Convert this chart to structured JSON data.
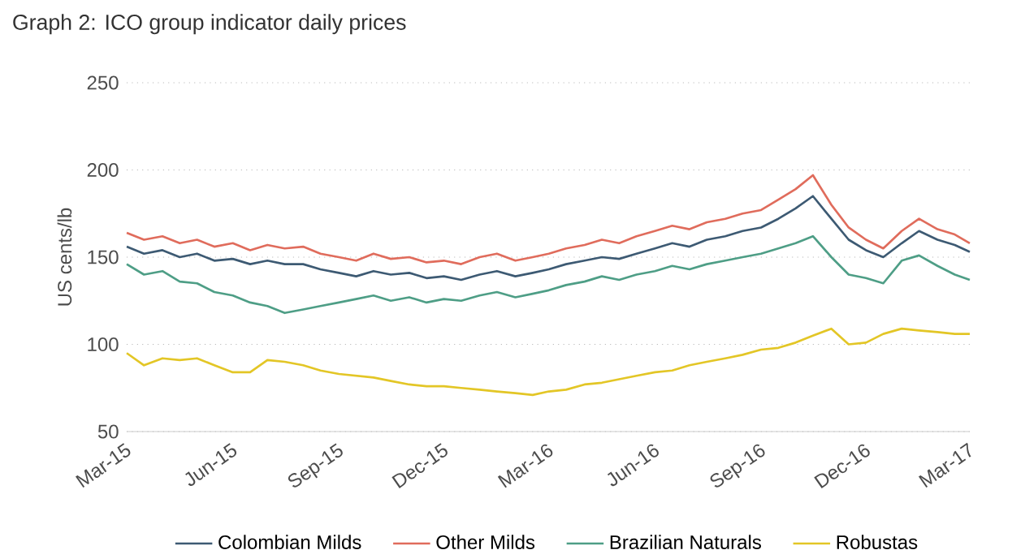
{
  "chart_data": {
    "type": "line",
    "title": "Graph 2: ICO group indicator daily prices",
    "ylabel": "US cents/lb",
    "x": [
      "2015-03-01",
      "2015-03-16",
      "2015-04-01",
      "2015-04-16",
      "2015-05-01",
      "2015-05-16",
      "2015-06-01",
      "2015-06-16",
      "2015-07-01",
      "2015-07-16",
      "2015-08-01",
      "2015-08-16",
      "2015-09-01",
      "2015-09-16",
      "2015-10-01",
      "2015-10-16",
      "2015-11-01",
      "2015-11-16",
      "2015-12-01",
      "2015-12-16",
      "2016-01-01",
      "2016-01-16",
      "2016-02-01",
      "2016-02-16",
      "2016-03-01",
      "2016-03-16",
      "2016-04-01",
      "2016-04-16",
      "2016-05-01",
      "2016-05-16",
      "2016-06-01",
      "2016-06-16",
      "2016-07-01",
      "2016-07-16",
      "2016-08-01",
      "2016-08-16",
      "2016-09-01",
      "2016-09-16",
      "2016-10-01",
      "2016-10-16",
      "2016-11-01",
      "2016-11-16",
      "2016-12-01",
      "2016-12-16",
      "2017-01-01",
      "2017-01-16",
      "2017-02-01",
      "2017-02-16",
      "2017-03-01"
    ],
    "series": [
      {
        "name": "Colombian Milds",
        "color": "#3d5a73",
        "values": [
          156,
          152,
          154,
          150,
          152,
          148,
          149,
          146,
          148,
          146,
          146,
          143,
          141,
          139,
          142,
          140,
          141,
          138,
          139,
          137,
          140,
          142,
          139,
          141,
          143,
          146,
          148,
          150,
          149,
          152,
          155,
          158,
          156,
          160,
          162,
          165,
          167,
          172,
          178,
          185,
          172,
          160,
          154,
          150,
          158,
          165,
          160,
          157,
          153
        ]
      },
      {
        "name": "Other Milds",
        "color": "#e06c5c",
        "values": [
          164,
          160,
          162,
          158,
          160,
          156,
          158,
          154,
          157,
          155,
          156,
          152,
          150,
          148,
          152,
          149,
          150,
          147,
          148,
          146,
          150,
          152,
          148,
          150,
          152,
          155,
          157,
          160,
          158,
          162,
          165,
          168,
          166,
          170,
          172,
          175,
          177,
          183,
          189,
          197,
          180,
          167,
          160,
          155,
          165,
          172,
          166,
          163,
          158
        ]
      },
      {
        "name": "Brazilian Naturals",
        "color": "#4e9e86",
        "values": [
          146,
          140,
          142,
          136,
          135,
          130,
          128,
          124,
          122,
          118,
          120,
          122,
          124,
          126,
          128,
          125,
          127,
          124,
          126,
          125,
          128,
          130,
          127,
          129,
          131,
          134,
          136,
          139,
          137,
          140,
          142,
          145,
          143,
          146,
          148,
          150,
          152,
          155,
          158,
          162,
          150,
          140,
          138,
          135,
          148,
          151,
          145,
          140,
          137
        ]
      },
      {
        "name": "Robustas",
        "color": "#e3c626",
        "values": [
          95,
          88,
          92,
          91,
          92,
          88,
          84,
          84,
          91,
          90,
          88,
          85,
          83,
          82,
          81,
          79,
          77,
          76,
          76,
          75,
          74,
          73,
          72,
          71,
          73,
          74,
          77,
          78,
          80,
          82,
          84,
          85,
          88,
          90,
          92,
          94,
          97,
          98,
          101,
          105,
          109,
          100,
          101,
          106,
          109,
          108,
          107,
          106,
          106
        ]
      }
    ],
    "xlim": [
      "2015-03-01",
      "2017-03-01"
    ],
    "xticks": [
      {
        "value": "2015-03-01",
        "label": "Mar-15"
      },
      {
        "value": "2015-06-01",
        "label": "Jun-15"
      },
      {
        "value": "2015-09-01",
        "label": "Sep-15"
      },
      {
        "value": "2015-12-01",
        "label": "Dec-15"
      },
      {
        "value": "2016-03-01",
        "label": "Mar-16"
      },
      {
        "value": "2016-06-01",
        "label": "Jun-16"
      },
      {
        "value": "2016-09-01",
        "label": "Sep-16"
      },
      {
        "value": "2016-12-01",
        "label": "Dec-16"
      },
      {
        "value": "2017-03-01",
        "label": "Mar-17"
      }
    ],
    "ylim": [
      50,
      250
    ],
    "yticks": [
      50,
      100,
      150,
      200,
      250
    ],
    "grid": "y",
    "legend": "bottom"
  }
}
